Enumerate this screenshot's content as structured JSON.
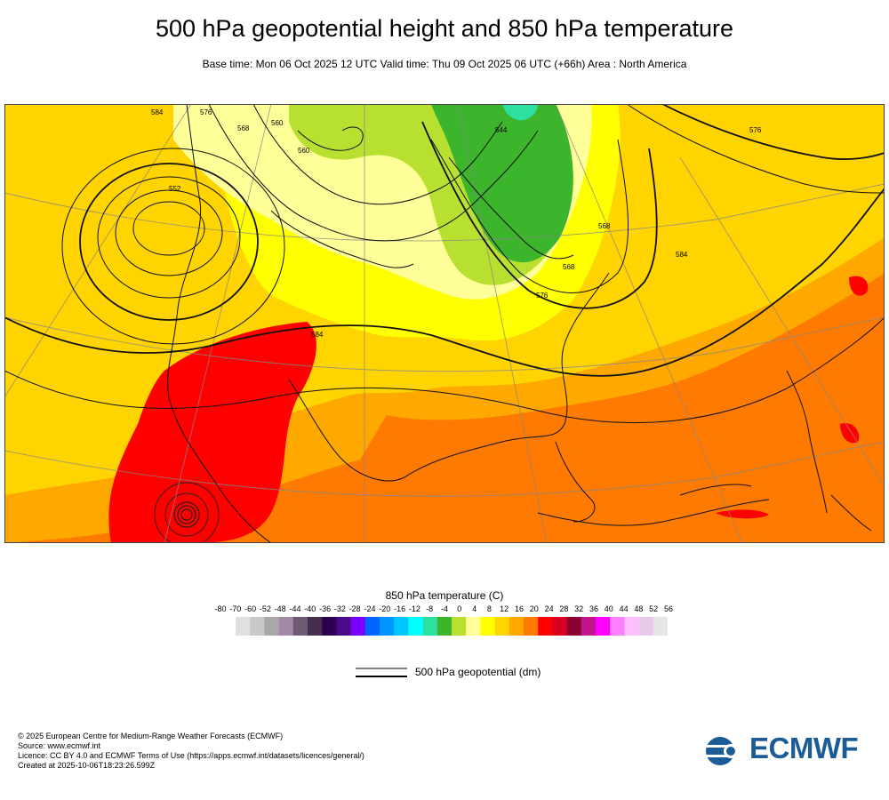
{
  "title": "500 hPa geopotential height and 850 hPa temperature",
  "subtitle": "Base time: Mon 06 Oct 2025 12 UTC Valid time: Thu 09 Oct 2025 06 UTC (+66h) Area : North America",
  "map": {
    "region": "North America",
    "contour_labels": [
      "584",
      "576",
      "568",
      "560",
      "552",
      "560",
      "544",
      "568",
      "576",
      "584",
      "576",
      "568",
      "584"
    ]
  },
  "colorbar": {
    "title": "850 hPa temperature (C)",
    "labels": [
      "-80",
      "-70",
      "-60",
      "-52",
      "-48",
      "-44",
      "-40",
      "-36",
      "-32",
      "-28",
      "-24",
      "-20",
      "-16",
      "-12",
      "-8",
      "-4",
      "0",
      "4",
      "8",
      "12",
      "16",
      "20",
      "24",
      "28",
      "32",
      "36",
      "40",
      "44",
      "48",
      "52",
      "56"
    ],
    "colors": [
      "#e0e0e0",
      "#c8c8c8",
      "#a8a8a8",
      "#a28aa6",
      "#6e5a72",
      "#44304e",
      "#2d004f",
      "#4a0a8a",
      "#7a00ff",
      "#0064ff",
      "#0096ff",
      "#00c8ff",
      "#00ffff",
      "#2ee0a0",
      "#3cb42c",
      "#b8e030",
      "#ffff99",
      "#ffff00",
      "#ffd400",
      "#ffa800",
      "#ff7a00",
      "#ff0000",
      "#d8001e",
      "#8a0030",
      "#c2148c",
      "#ff00ff",
      "#ff80ff",
      "#ffbfff",
      "#e8c8e8",
      "#e6e6e6"
    ]
  },
  "legend": {
    "label": "500 hPa geopotential (dm)"
  },
  "footer": {
    "line1": "© 2025 European Centre for Medium-Range Weather Forecasts (ECMWF)",
    "line2": "Source: www.ecmwf.int",
    "line3": "Licence: CC BY 4.0 and ECMWF Terms of Use (https://apps.ecmwf.int/datasets/licences/general/)",
    "line4": "Created at 2025-10-06T18:23:26.599Z"
  },
  "logo": {
    "text": "ECMWF",
    "color": "#1b5c96"
  }
}
